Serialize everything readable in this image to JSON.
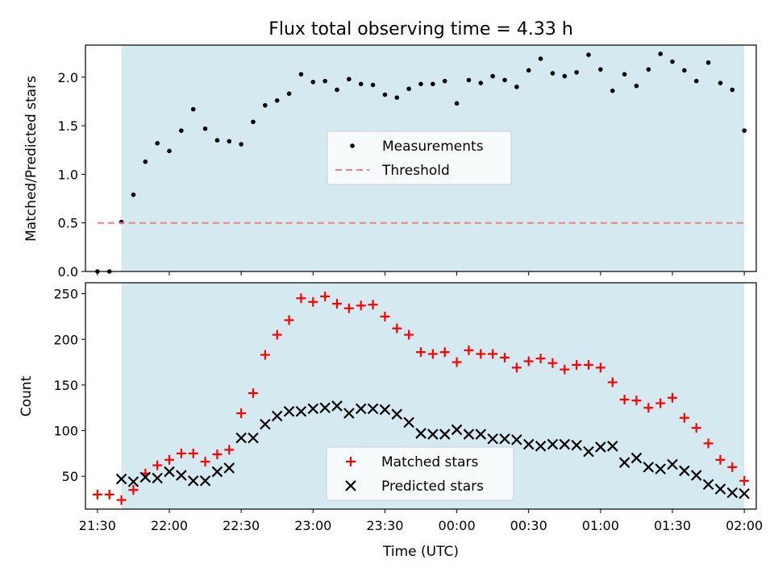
{
  "chart_data": [
    {
      "type": "scatter",
      "title": "Flux total observing time = 4.33 h",
      "xlabel": "",
      "ylabel": "Matched/Predicted stars",
      "ylim": [
        0,
        2.33
      ],
      "xlim": [
        "21:25",
        "02:05"
      ],
      "yticks": [
        "0.0",
        "0.5",
        "1.0",
        "1.5",
        "2.0"
      ],
      "shaded_span": [
        "21:40",
        "02:00"
      ],
      "shade_color": "#d4eaf0",
      "legend_loc": "center",
      "series": [
        {
          "name": "Measurements",
          "marker": "dot",
          "color": "#000000",
          "x": [
            "21:30",
            "21:35",
            "21:40",
            "21:45",
            "21:50",
            "21:55",
            "22:00",
            "22:05",
            "22:10",
            "22:15",
            "22:20",
            "22:25",
            "22:30",
            "22:35",
            "22:40",
            "22:45",
            "22:50",
            "22:55",
            "23:00",
            "23:05",
            "23:10",
            "23:15",
            "23:20",
            "23:25",
            "23:30",
            "23:35",
            "23:40",
            "23:45",
            "23:50",
            "23:55",
            "00:00",
            "00:05",
            "00:10",
            "00:15",
            "00:20",
            "00:25",
            "00:30",
            "00:35",
            "00:40",
            "00:45",
            "00:50",
            "00:55",
            "01:00",
            "01:05",
            "01:10",
            "01:15",
            "01:20",
            "01:25",
            "01:30",
            "01:35",
            "01:40",
            "01:45",
            "01:50",
            "01:55",
            "02:00"
          ],
          "y": [
            0.0,
            0.0,
            0.51,
            0.79,
            1.13,
            1.32,
            1.24,
            1.45,
            1.67,
            1.47,
            1.35,
            1.34,
            1.31,
            1.54,
            1.71,
            1.76,
            1.83,
            2.03,
            1.95,
            1.96,
            1.87,
            1.98,
            1.93,
            1.92,
            1.82,
            1.79,
            1.88,
            1.93,
            1.93,
            1.96,
            1.73,
            1.97,
            1.94,
            2.01,
            1.97,
            1.9,
            2.07,
            2.19,
            2.04,
            2.01,
            2.05,
            2.23,
            2.08,
            1.86,
            2.03,
            1.91,
            2.08,
            2.24,
            2.16,
            2.07,
            1.96,
            2.15,
            1.94,
            1.87,
            1.45
          ]
        },
        {
          "name": "Threshold",
          "marker": "dashed-line",
          "color": "#f08080",
          "x": [
            "21:30",
            "02:00"
          ],
          "y": [
            0.5,
            0.5
          ]
        }
      ]
    },
    {
      "type": "scatter",
      "title": "",
      "xlabel": "Time (UTC)",
      "ylabel": "Count",
      "ylim": [
        14,
        262
      ],
      "xlim": [
        "21:25",
        "02:05"
      ],
      "yticks": [
        "50",
        "100",
        "150",
        "200",
        "250"
      ],
      "xticks": [
        "21:30",
        "22:00",
        "22:30",
        "23:00",
        "23:30",
        "00:00",
        "00:30",
        "01:00",
        "01:30",
        "02:00"
      ],
      "shaded_span": [
        "21:40",
        "02:00"
      ],
      "shade_color": "#d4eaf0",
      "legend_loc": "lower center",
      "series": [
        {
          "name": "Matched stars",
          "marker": "plus",
          "color": "#ff0000",
          "x": [
            "21:30",
            "21:35",
            "21:40",
            "21:45",
            "21:50",
            "21:55",
            "22:00",
            "22:05",
            "22:10",
            "22:15",
            "22:20",
            "22:25",
            "22:30",
            "22:35",
            "22:40",
            "22:45",
            "22:50",
            "22:55",
            "23:00",
            "23:05",
            "23:10",
            "23:15",
            "23:20",
            "23:25",
            "23:30",
            "23:35",
            "23:40",
            "23:45",
            "23:50",
            "23:55",
            "00:00",
            "00:05",
            "00:10",
            "00:15",
            "00:20",
            "00:25",
            "00:30",
            "00:35",
            "00:40",
            "00:45",
            "00:50",
            "00:55",
            "01:00",
            "01:05",
            "01:10",
            "01:15",
            "01:20",
            "01:25",
            "01:30",
            "01:35",
            "01:40",
            "01:45",
            "01:50",
            "01:55",
            "02:00"
          ],
          "y": [
            30,
            30,
            24,
            35,
            53,
            62,
            68,
            75,
            75,
            66,
            74,
            79,
            119,
            141,
            183,
            205,
            221,
            245,
            241,
            247,
            239,
            234,
            237,
            238,
            225,
            212,
            205,
            186,
            184,
            186,
            175,
            188,
            184,
            184,
            180,
            169,
            176,
            179,
            174,
            167,
            172,
            172,
            169,
            153,
            134,
            133,
            125,
            130,
            136,
            114,
            103,
            86,
            68,
            60,
            45
          ]
        },
        {
          "name": "Predicted stars",
          "marker": "x",
          "color": "#000000",
          "x": [
            "21:40",
            "21:45",
            "21:50",
            "21:55",
            "22:00",
            "22:05",
            "22:10",
            "22:15",
            "22:20",
            "22:25",
            "22:30",
            "22:35",
            "22:40",
            "22:45",
            "22:50",
            "22:55",
            "23:00",
            "23:05",
            "23:10",
            "23:15",
            "23:20",
            "23:25",
            "23:30",
            "23:35",
            "23:40",
            "23:45",
            "23:50",
            "23:55",
            "00:00",
            "00:05",
            "00:10",
            "00:15",
            "00:20",
            "00:25",
            "00:30",
            "00:35",
            "00:40",
            "00:45",
            "00:50",
            "00:55",
            "01:00",
            "01:05",
            "01:10",
            "01:15",
            "01:20",
            "01:25",
            "01:30",
            "01:35",
            "01:40",
            "01:45",
            "01:50",
            "01:55",
            "02:00"
          ],
          "y": [
            47,
            44,
            49,
            48,
            55,
            51,
            45,
            45,
            55,
            59,
            92,
            92,
            107,
            116,
            121,
            121,
            124,
            125,
            127,
            119,
            124,
            124,
            123,
            118,
            109,
            97,
            96,
            96,
            101,
            96,
            96,
            91,
            91,
            90,
            85,
            83,
            85,
            85,
            84,
            77,
            82,
            83,
            65,
            70,
            60,
            58,
            63,
            56,
            51,
            41,
            36,
            32,
            31
          ]
        }
      ]
    }
  ]
}
